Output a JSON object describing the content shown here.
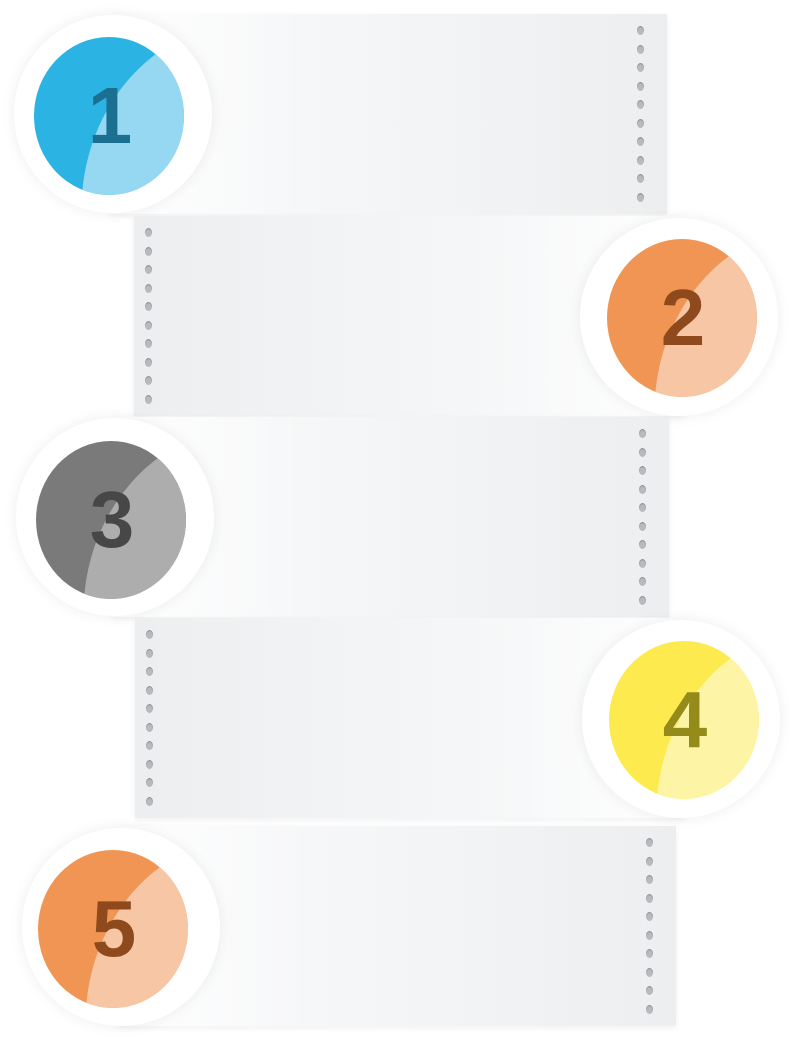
{
  "steps": [
    {
      "label": "1",
      "side": "left",
      "base": "#2bb3e3",
      "light": "#96d8f1",
      "text": "#1b6f91"
    },
    {
      "label": "2",
      "side": "right",
      "base": "#f09553",
      "light": "#f7c6a5",
      "text": "#8e4a1c"
    },
    {
      "label": "3",
      "side": "left",
      "base": "#7a7a7a",
      "light": "#adadad",
      "text": "#474747"
    },
    {
      "label": "4",
      "side": "right",
      "base": "#fdea4e",
      "light": "#fdf5a5",
      "text": "#958b1b"
    },
    {
      "label": "5",
      "side": "left",
      "base": "#f09553",
      "light": "#f7c6a5",
      "text": "#8e4a1c"
    }
  ]
}
